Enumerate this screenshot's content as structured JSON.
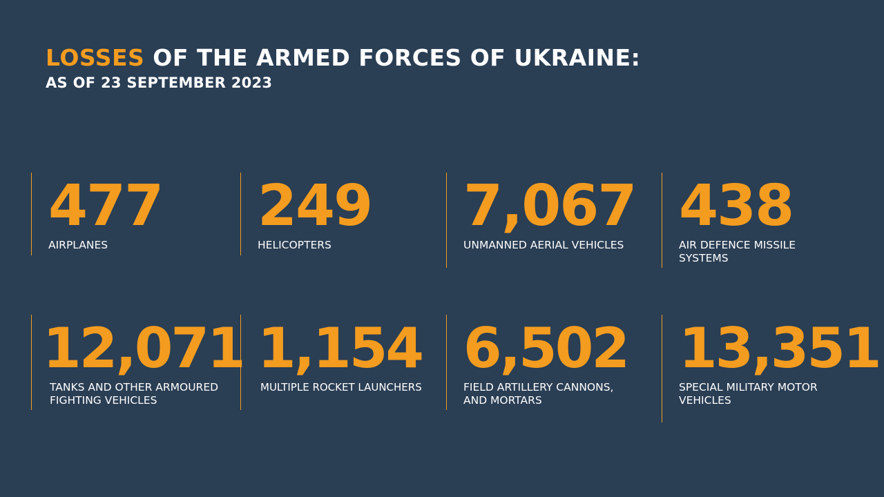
{
  "header": {
    "title_accent": "LOSSES",
    "title_rest": " OF THE ARMED FORCES OF UKRAINE:",
    "subtitle": "AS OF 23 SEPTEMBER 2023"
  },
  "stats": [
    {
      "value": "477",
      "label_lines": [
        "AIRPLANES"
      ]
    },
    {
      "value": "249",
      "label_lines": [
        "HELICOPTERS"
      ]
    },
    {
      "value": "7,067",
      "label_lines": [
        "UNMANNED AERIAL VEHICLES"
      ]
    },
    {
      "value": "438",
      "label_lines": [
        "AIR DEFENCE MISSILE",
        "SYSTEMS"
      ]
    },
    {
      "value": "12,071",
      "label_lines": [
        "TANKS AND OTHER ARMOURED",
        "FIGHTING VEHICLES"
      ]
    },
    {
      "value": "1,154",
      "label_lines": [
        "MULTIPLE ROCKET LAUNCHERS"
      ]
    },
    {
      "value": "6,502",
      "label_lines": [
        "FIELD ARTILLERY CANNONS,",
        "AND MORTARS"
      ]
    },
    {
      "value": "13,351",
      "label_lines": [
        "SPECIAL MILITARY MOTOR",
        "VEHICLES"
      ]
    }
  ],
  "colors": {
    "background": "#2a3e54",
    "accent": "#f39c1f",
    "text": "#ffffff"
  }
}
